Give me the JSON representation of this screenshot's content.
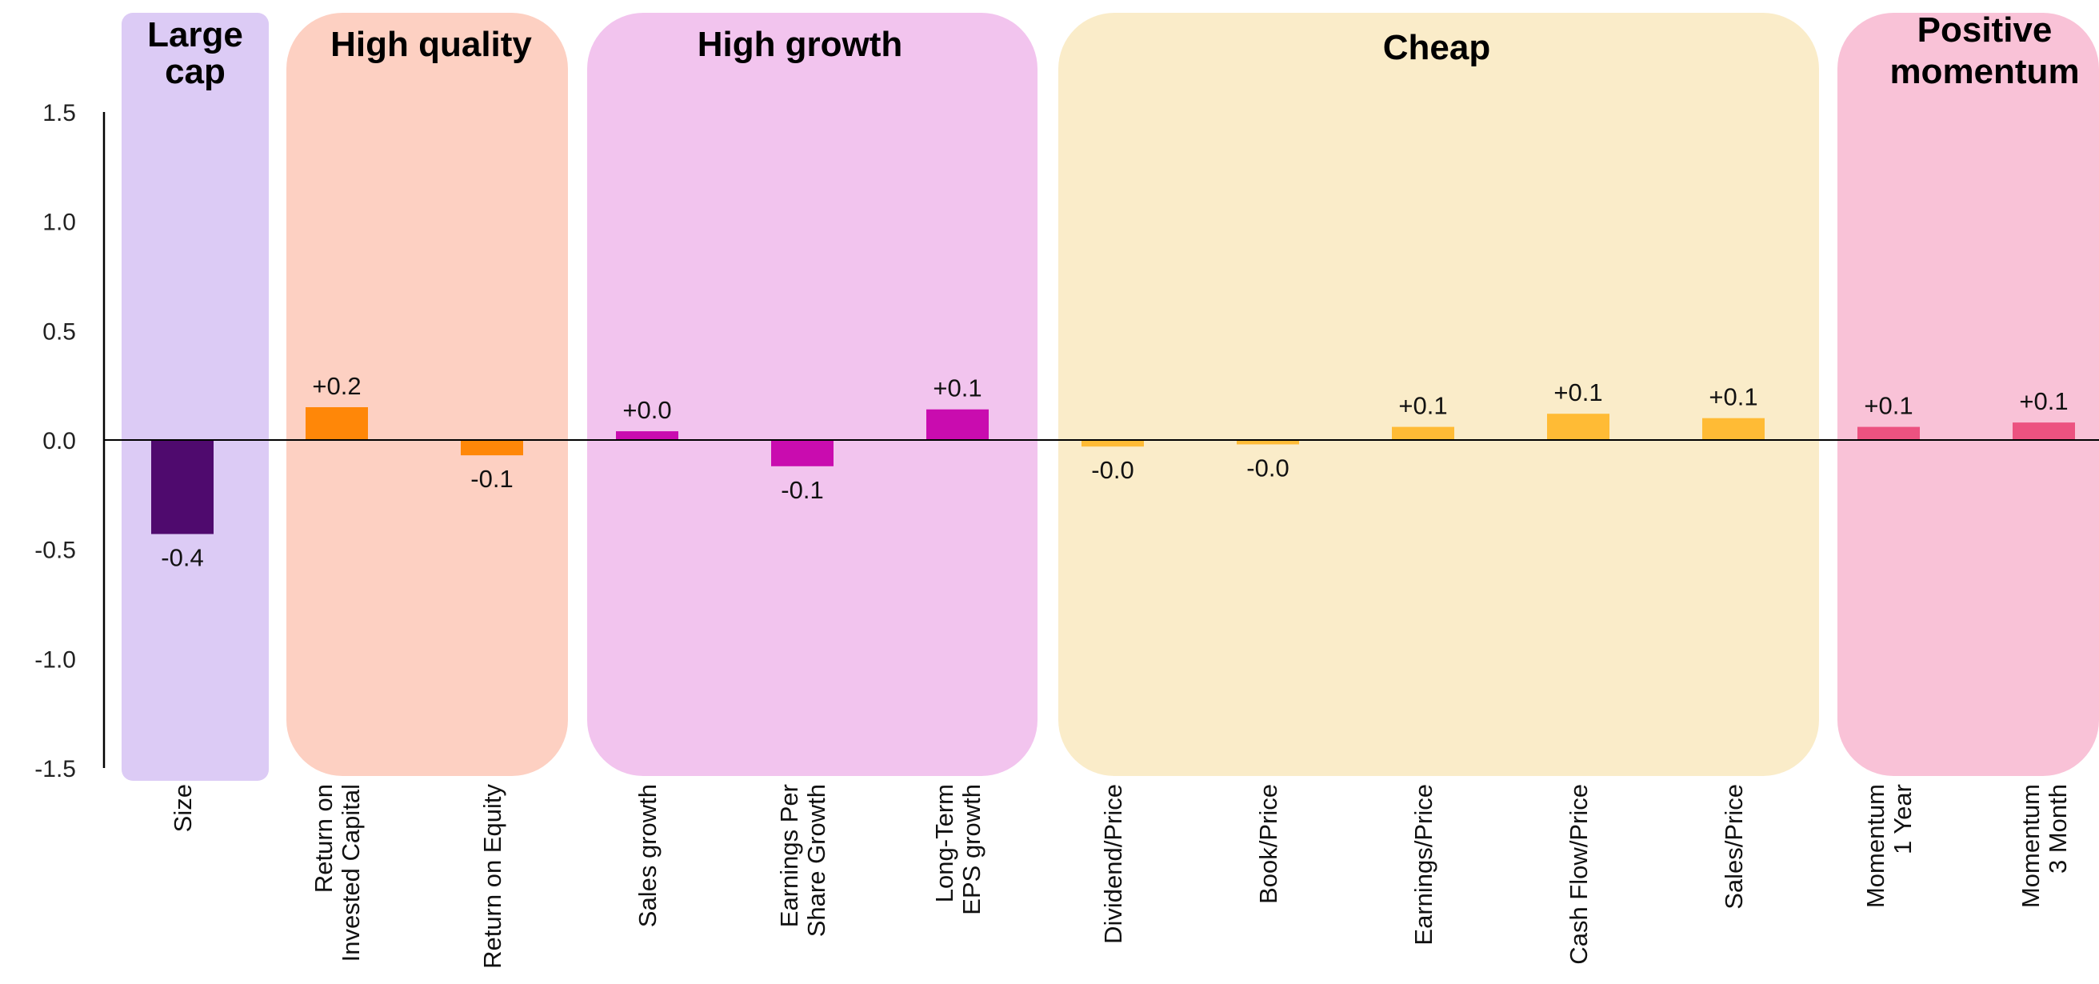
{
  "chart_data": {
    "type": "bar",
    "ylim": [
      -1.5,
      1.5
    ],
    "yticks": [
      "1.5",
      "1.0",
      "0.5",
      "0.0",
      "-0.5",
      "-1.0",
      "-1.5"
    ],
    "yticks_values": [
      1.5,
      1.0,
      0.5,
      0.0,
      -0.5,
      -1.0,
      -1.5
    ],
    "grid": false,
    "groups": [
      {
        "title": [
          "Large",
          "cap"
        ],
        "band_color": "#dccbf5",
        "bar_color": "#4f0a6e",
        "categories": [
          {
            "label": [
              "Size"
            ],
            "value": -0.43,
            "data_label": "-0.4"
          }
        ]
      },
      {
        "title": [
          "High quality"
        ],
        "band_color": "#fdd0c2",
        "bar_color": "#ff8708",
        "categories": [
          {
            "label": [
              "Return on",
              "Invested Capital"
            ],
            "value": 0.15,
            "data_label": "+0.2"
          },
          {
            "label": [
              "Return on Equity"
            ],
            "value": -0.07,
            "data_label": "-0.1"
          }
        ]
      },
      {
        "title": [
          "High growth"
        ],
        "band_color": "#f2c4ee",
        "bar_color": "#c90caf",
        "categories": [
          {
            "label": [
              "Sales growth"
            ],
            "value": 0.04,
            "data_label": "+0.0"
          },
          {
            "label": [
              "Earnings Per",
              "Share Growth"
            ],
            "value": -0.12,
            "data_label": "-0.1"
          },
          {
            "label": [
              "Long-Term",
              "EPS growth"
            ],
            "value": 0.14,
            "data_label": "+0.1"
          }
        ]
      },
      {
        "title": [
          "Cheap"
        ],
        "band_color": "#faecc9",
        "bar_color": "#ffbb35",
        "categories": [
          {
            "label": [
              "Dividend/Price"
            ],
            "value": -0.03,
            "data_label": "-0.0"
          },
          {
            "label": [
              "Book/Price"
            ],
            "value": -0.02,
            "data_label": "-0.0"
          },
          {
            "label": [
              "Earnings/Price"
            ],
            "value": 0.06,
            "data_label": "+0.1"
          },
          {
            "label": [
              "Cash Flow/Price"
            ],
            "value": 0.12,
            "data_label": "+0.1"
          },
          {
            "label": [
              "Sales/Price"
            ],
            "value": 0.1,
            "data_label": "+0.1"
          }
        ]
      },
      {
        "title": [
          "Positive",
          "momentum"
        ],
        "band_color": "#f9c2d7",
        "bar_color": "#ec5280",
        "categories": [
          {
            "label": [
              "Momentum",
              "1 Year"
            ],
            "value": 0.06,
            "data_label": "+0.1"
          },
          {
            "label": [
              "Momentum",
              "3 Month"
            ],
            "value": 0.08,
            "data_label": "+0.1"
          }
        ]
      }
    ]
  }
}
